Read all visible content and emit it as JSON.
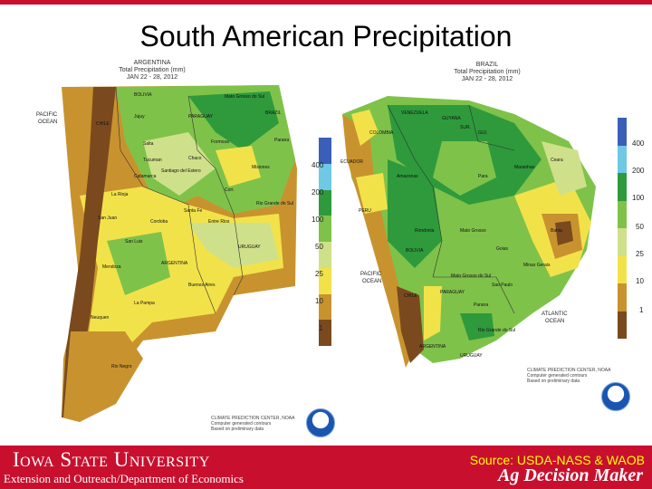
{
  "slide": {
    "title": "South American Precipitation"
  },
  "map_left": {
    "header": [
      "ARGENTINA",
      "Total Precipitation (mm)",
      "JAN 22 - 28, 2012"
    ],
    "footer": [
      "CLIMATE PREDICTION CENTER, NOAA",
      "Computer generated contours",
      "Based on preliminary data"
    ],
    "ocean_label": [
      "PACIFIC",
      "OCEAN"
    ],
    "places": [
      "BOLIVIA",
      "CHILE",
      "PARAGUAY",
      "BRAZIL",
      "Mato Grosso do Sul",
      "Parana",
      "Jujuy",
      "Salta",
      "Chaco",
      "Formosa",
      "Tucuman",
      "Santiago del Estero",
      "Misiones",
      "Catamarca",
      "Corr.",
      "La Rioja",
      "Santa Fe",
      "Entre Rios",
      "Rio Grande do Sul",
      "San Juan",
      "Cordoba",
      "URUGUAY",
      "San Luis",
      "Mendoza",
      "ARGENTINA",
      "Buenos Aires",
      "La Pampa",
      "Neuquen",
      "Rio Negro"
    ],
    "legend": [
      "400",
      "200",
      "100",
      "50",
      "25",
      "10",
      "1"
    ]
  },
  "map_right": {
    "header": [
      "BRAZIL",
      "Total Precipitation (mm)",
      "JAN 22 - 28, 2012"
    ],
    "footer": [
      "CLIMATE PREDICTION CENTER, NOAA",
      "Computer generated contours",
      "Based on preliminary data"
    ],
    "places": [
      "VENEZUELA",
      "GUYANA",
      "SUR.",
      "GUI.",
      "COLOMBIA",
      "ECUADOR",
      "Amazonas",
      "Para",
      "Maranhao",
      "Ceara",
      "PERU",
      "Rondonia",
      "BOLIVIA",
      "Mato Grosso",
      "Bahia",
      "Goias",
      "Mato Grosso do Sul",
      "Minas Gerais",
      "Sao Paulo",
      "PARAGUAY",
      "CHILE",
      "Parana",
      "Rio Grande do Sul",
      "URUGUAY",
      "ARGENTINA"
    ],
    "ocean_pacific": [
      "PACIFIC",
      "OCEAN"
    ],
    "ocean_atlantic": [
      "ATLANTIC",
      "OCEAN"
    ],
    "legend": [
      "400",
      "200",
      "100",
      "50",
      "25",
      "10",
      "1"
    ]
  },
  "legend_colors": [
    "#3a5fb8",
    "#6ec8e6",
    "#2e9a3c",
    "#7fc24a",
    "#cfe08a",
    "#f2e24a",
    "#c8932e",
    "#7a4a1e"
  ],
  "footer": {
    "institution": "Iowa State University",
    "department": "Extension and Outreach/Department of Economics",
    "source": "Source: USDA-NASS & WAOB",
    "brand": "Ag Decision Maker"
  }
}
